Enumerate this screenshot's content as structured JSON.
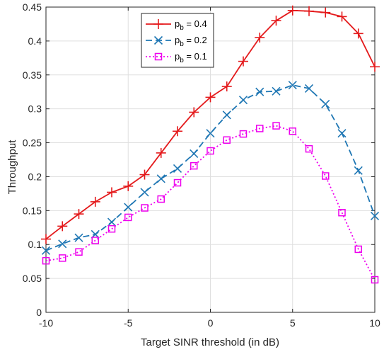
{
  "chart_data": {
    "type": "line",
    "xlabel": "Target SINR threshold (in dB)",
    "ylabel": "Throughput",
    "xlim": [
      -10,
      10
    ],
    "ylim": [
      0,
      0.45
    ],
    "xticks": [
      -10,
      -5,
      0,
      5,
      10
    ],
    "xtick_labels": [
      "-10",
      "-5",
      "0",
      "5",
      "10"
    ],
    "yticks": [
      0,
      0.05,
      0.1,
      0.15,
      0.2,
      0.25,
      0.3,
      0.35,
      0.4,
      0.45
    ],
    "ytick_labels": [
      "0",
      "0.05",
      "0.1",
      "0.15",
      "0.2",
      "0.25",
      "0.3",
      "0.35",
      "0.4",
      "0.45"
    ],
    "grid": true,
    "legend_position": "top-center",
    "x": [
      -10,
      -9,
      -8,
      -7,
      -6,
      -5,
      -4,
      -3,
      -2,
      -1,
      0,
      1,
      2,
      3,
      4,
      5,
      6,
      7,
      8,
      9,
      10
    ],
    "series": [
      {
        "name_main": "p",
        "name_sub": "b",
        "name_rest": " = 0.4",
        "color": "#e41a1c",
        "marker": "plus",
        "line_style": "solid",
        "values": [
          0.108,
          0.127,
          0.145,
          0.163,
          0.177,
          0.186,
          0.203,
          0.235,
          0.267,
          0.295,
          0.317,
          0.333,
          0.37,
          0.405,
          0.43,
          0.445,
          0.444,
          0.442,
          0.436,
          0.411,
          0.362
        ]
      },
      {
        "name_main": "p",
        "name_sub": "b",
        "name_rest": " = 0.2",
        "color": "#1f77b4",
        "marker": "x",
        "line_style": "dashed",
        "values": [
          0.091,
          0.101,
          0.11,
          0.115,
          0.133,
          0.155,
          0.177,
          0.197,
          0.212,
          0.234,
          0.264,
          0.291,
          0.313,
          0.325,
          0.326,
          0.335,
          0.33,
          0.307,
          0.264,
          0.209,
          0.142
        ]
      },
      {
        "name_main": "p",
        "name_sub": "b",
        "name_rest": " = 0.1",
        "color": "#ee00ee",
        "marker": "square",
        "line_style": "dotted",
        "values": [
          0.076,
          0.08,
          0.089,
          0.106,
          0.123,
          0.14,
          0.154,
          0.167,
          0.191,
          0.216,
          0.238,
          0.254,
          0.263,
          0.271,
          0.275,
          0.267,
          0.241,
          0.201,
          0.147,
          0.093,
          0.048
        ]
      }
    ]
  }
}
